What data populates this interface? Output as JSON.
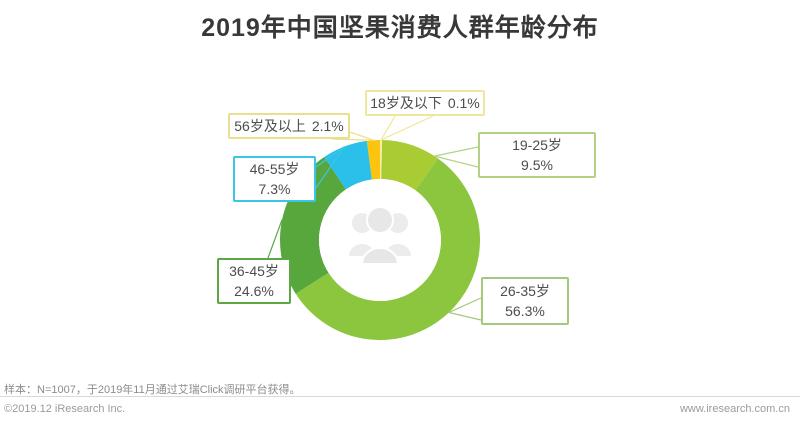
{
  "title": "2019年中国坚果消费人群年龄分布",
  "chart_data": {
    "type": "pie",
    "subtype": "donut",
    "title": "2019年中国坚果消费人群年龄分布",
    "unit": "%",
    "legend_position": "callout-labels",
    "center_icon": "people-group-icon",
    "segments": [
      {
        "label": "18岁及以下",
        "pct": "0.1%",
        "value": 0.1,
        "color": "#f7efa3",
        "callout_border": "#eee79b"
      },
      {
        "label": "19-25岁",
        "pct": "9.5%",
        "value": 9.5,
        "color": "#a9cc35",
        "callout_border": "#b3d285"
      },
      {
        "label": "26-35岁",
        "pct": "56.3%",
        "value": 56.3,
        "color": "#8cc63f",
        "callout_border": "#a3c97e"
      },
      {
        "label": "36-45岁",
        "pct": "24.6%",
        "value": 24.6,
        "color": "#57a73c",
        "callout_border": "#5aa743"
      },
      {
        "label": "46-55岁",
        "pct": "7.3%",
        "value": 7.3,
        "color": "#2bc0e9",
        "callout_border": "#3ac5ea"
      },
      {
        "label": "56岁及以上",
        "pct": "2.1%",
        "value": 2.1,
        "color": "#fcc40e",
        "callout_border": "#e9e08d"
      }
    ]
  },
  "footer": {
    "note": "样本：N=1007，于2019年11月通过艾瑞Click调研平台获得。",
    "copyright": "©2019.12 iResearch Inc.",
    "website": "www.iresearch.com.cn"
  }
}
